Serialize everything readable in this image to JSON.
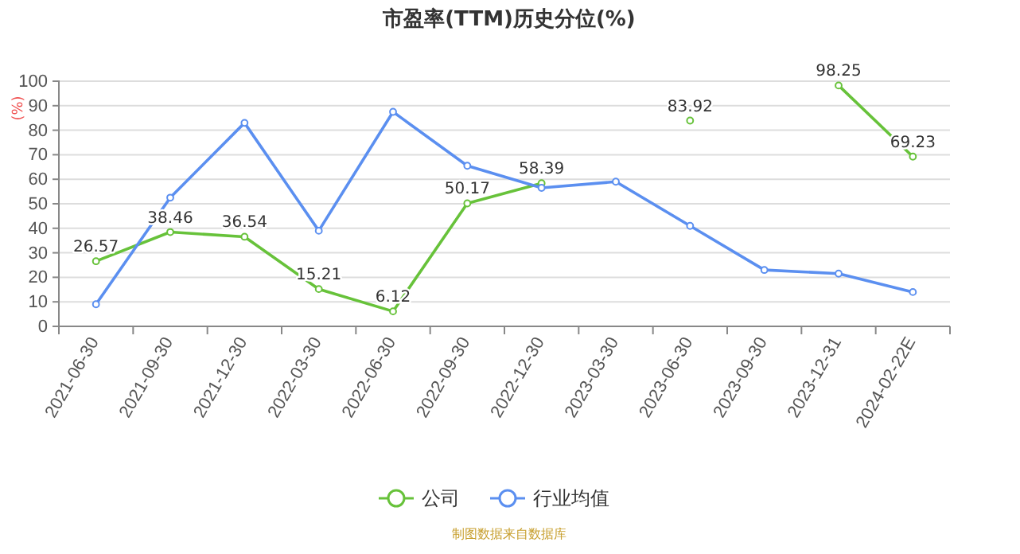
{
  "chart_data": {
    "type": "line",
    "title": "市盈率(TTM)历史分位(%)",
    "ylabel": "(%)",
    "categories": [
      "2021-06-30",
      "2021-09-30",
      "2021-12-30",
      "2022-03-30",
      "2022-06-30",
      "2022-09-30",
      "2022-12-30",
      "2023-03-30",
      "2023-06-30",
      "2023-09-30",
      "2023-12-31",
      "2024-02-22E"
    ],
    "series": [
      {
        "name": "公司",
        "color": "#67c23a",
        "values": [
          26.57,
          38.46,
          36.54,
          15.21,
          6.12,
          50.17,
          58.39,
          null,
          83.92,
          null,
          98.25,
          69.23
        ],
        "value_labels": [
          "26.57",
          "38.46",
          "36.54",
          "15.21",
          "6.12",
          "50.17",
          "58.39",
          null,
          "83.92",
          null,
          "98.25",
          "69.23"
        ]
      },
      {
        "name": "行业均值",
        "color": "#5b8ff0",
        "values": [
          9,
          52.5,
          83,
          39,
          87.5,
          65.5,
          56.5,
          59,
          41,
          23,
          21.5,
          14
        ]
      }
    ],
    "ylim": [
      0,
      100
    ],
    "yticks": [
      0,
      10,
      20,
      30,
      40,
      50,
      60,
      70,
      80,
      90,
      100
    ],
    "grid": "y",
    "legend": "bottom",
    "marker": "circle",
    "line_style": "solid",
    "annotations": [
      "制图数据来自数据库"
    ]
  }
}
